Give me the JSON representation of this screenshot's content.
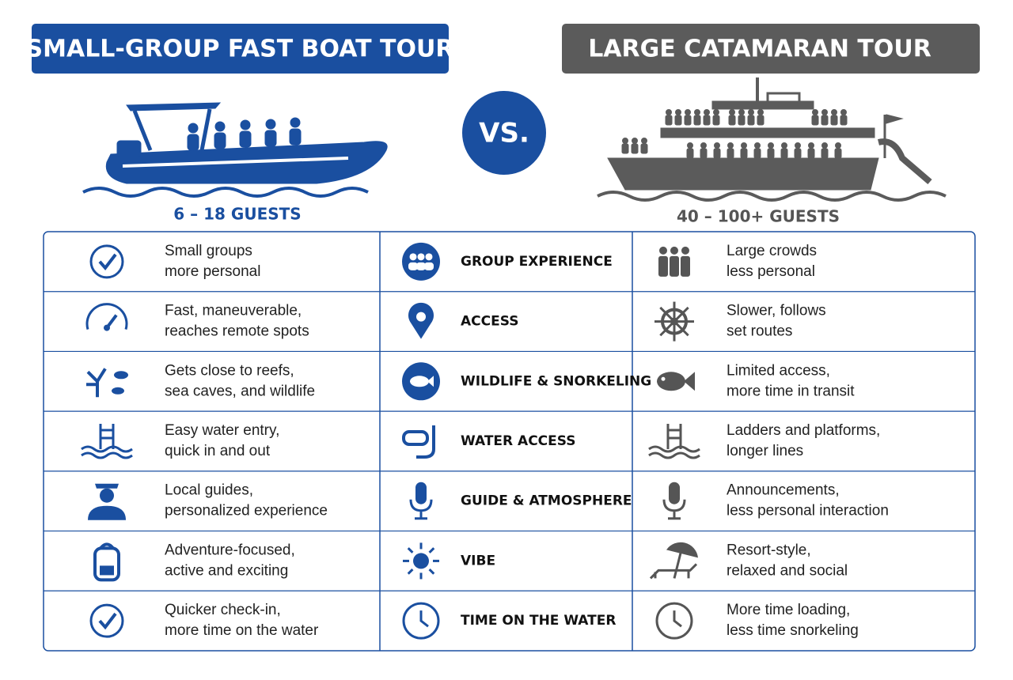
{
  "header": {
    "left_title": "SMALL-GROUP FAST BOAT TOUR",
    "right_title": "LARGE CATAMARAN TOUR",
    "vs": "VS."
  },
  "left": {
    "guests": "6 – 18 GUESTS"
  },
  "right": {
    "guests": "40 – 100+ GUESTS"
  },
  "table": {
    "rows": [
      {
        "left": [
          "Small groups",
          "more personal"
        ],
        "category": "GROUP EXPERIENCE",
        "right": [
          "Large crowds",
          "less personal"
        ]
      },
      {
        "left": [
          "Fast, maneuverable,",
          "reaches remote spots"
        ],
        "category": "ACCESS",
        "right": [
          "Slower, follows",
          "set routes"
        ]
      },
      {
        "left": [
          "Gets close to reefs,",
          "sea caves, and wildlife"
        ],
        "category": "WILDLIFE & SNORKELING",
        "right": [
          "Limited access,",
          "more time in transit"
        ]
      },
      {
        "left": [
          "Easy water entry,",
          "quick in and out"
        ],
        "category": "WATER ACCESS",
        "right": [
          "Ladders and platforms,",
          "longer lines"
        ]
      },
      {
        "left": [
          "Local guides,",
          "personalized experience"
        ],
        "category": "GUIDE & ATMOSPHERE",
        "right": [
          "Announcements,",
          "less personal interaction"
        ]
      },
      {
        "left": [
          "Adventure-focused,",
          "active and exciting"
        ],
        "category": "VIBE",
        "right": [
          "Resort-style,",
          "relaxed and social"
        ]
      },
      {
        "left": [
          "Quicker check-in,",
          "more time on the water"
        ],
        "category": "TIME ON THE WATER",
        "right": [
          "More time loading,",
          "less time snorkeling"
        ]
      }
    ]
  }
}
